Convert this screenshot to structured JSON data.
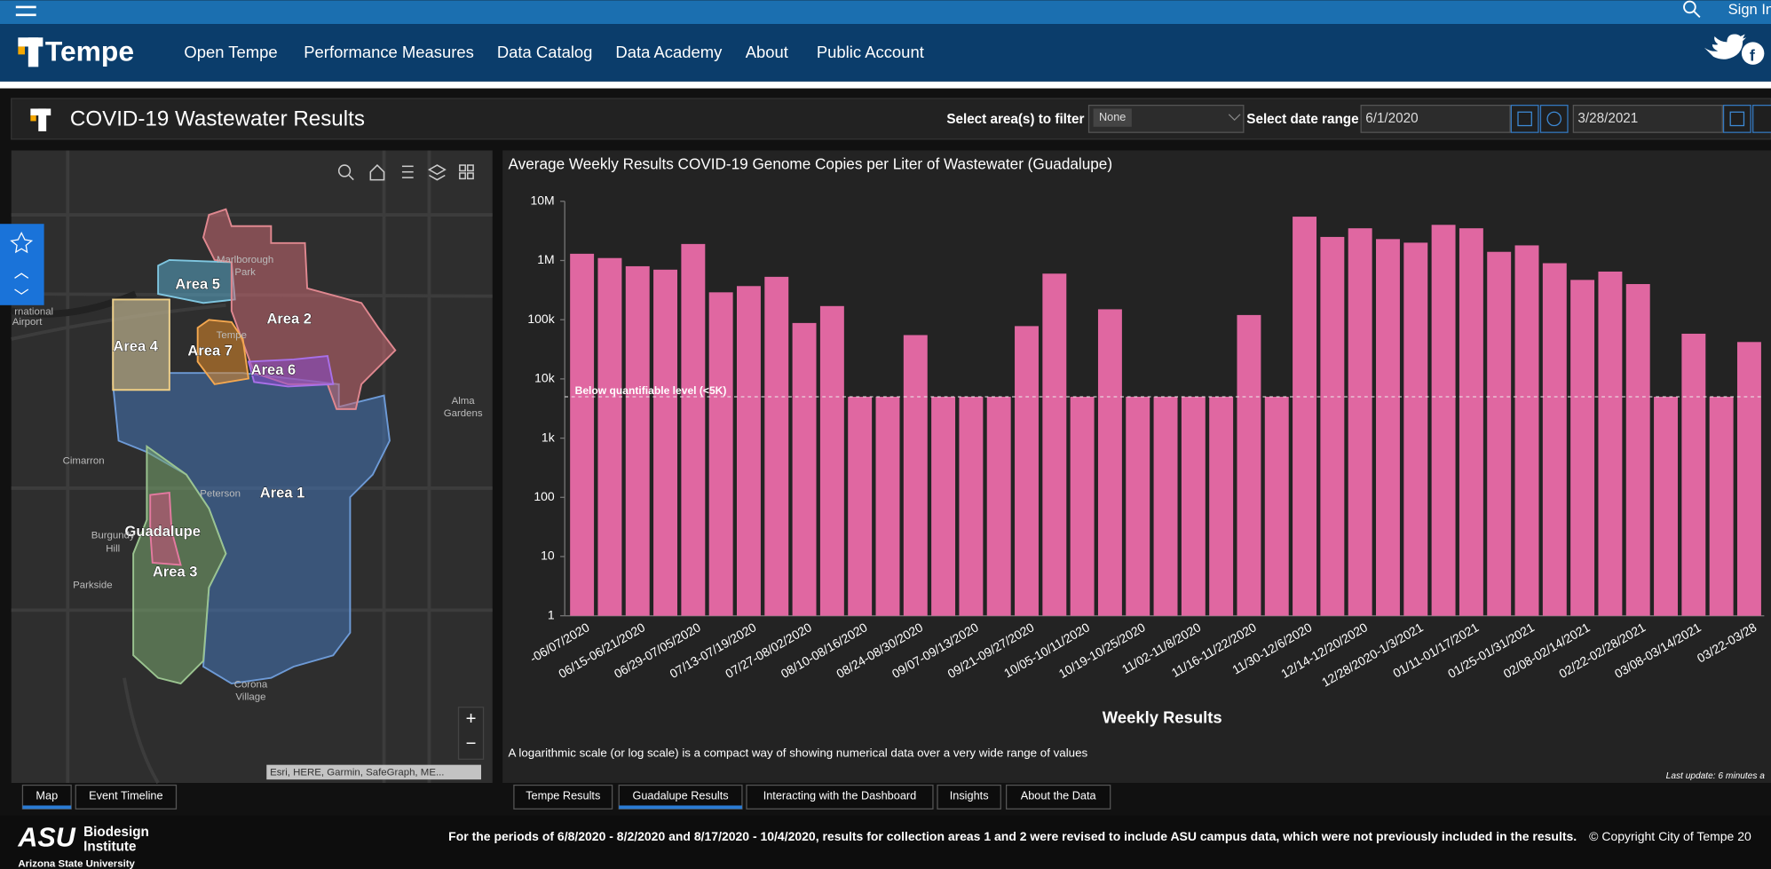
{
  "top_bar": {
    "sign_in": "Sign In"
  },
  "nav": {
    "brand": "Tempe",
    "links": [
      "Open Tempe",
      "Performance Measures",
      "Data Catalog",
      "Data Academy",
      "About",
      "Public Account"
    ]
  },
  "dashboard": {
    "title": "COVID-19 Wastewater Results",
    "filter_label": "Select area(s) to filter",
    "filter_value": "None",
    "date_label": "Select date range",
    "date_start": "6/1/2020",
    "date_end": "3/28/2021"
  },
  "map": {
    "areas": [
      "Area 5",
      "Area 2",
      "Area 4",
      "Area 7",
      "Area 6",
      "Area 1",
      "Guadalupe",
      "Area 3"
    ],
    "places": [
      "Marlborough",
      "Park",
      "Tempe",
      "Alma",
      "Gardens",
      "Cimarron",
      "Peterson",
      "Burgundy",
      "Hill",
      "Parkside",
      "Corona",
      "Village",
      "rnational",
      "Airport"
    ],
    "attribution": "Esri, HERE, Garmin, SafeGraph, ME..."
  },
  "map_tabs": [
    "Map",
    "Event Timeline"
  ],
  "chart_tabs": [
    "Tempe Results",
    "Guadalupe Results",
    "Interacting with the Dashboard",
    "Insights",
    "About the Data"
  ],
  "chart_data": {
    "type": "bar",
    "title": "Average Weekly Results COVID-19 Genome Copies per Liter of Wastewater (Guadalupe)",
    "x_label": "Weekly Results",
    "note": "A logarithmic scale (or log scale) is a compact way of showing numerical data over a very wide range of values",
    "last_update": "Last update: 6 minutes a",
    "log_scale": true,
    "color": "#e067a1",
    "categories": [
      "-06/07/2020",
      null,
      "06/15-06/21/2020",
      null,
      "06/29-07/05/2020",
      null,
      "07/13-07/19/2020",
      null,
      "07/27-08/02/2020",
      null,
      "08/10-08/16/2020",
      null,
      "08/24-08/30/2020",
      null,
      "09/07-09/13/2020",
      null,
      "09/21-09/27/2020",
      null,
      "10/05-10/11/2020",
      null,
      "10/19-10/25/2020",
      null,
      "11/02-11/8/2020",
      null,
      "11/16-11/22/2020",
      null,
      "11/30-12/6/2020",
      null,
      "12/14-12/20/2020",
      null,
      "12/28/2020-1/3/2021",
      null,
      "01/11-01/17/2021",
      null,
      "01/25-01/31/2021",
      null,
      "02/08-02/14/2021",
      null,
      "02/22-02/28/2021",
      null,
      "03/08-03/14/2021",
      null,
      "03/22-03/28"
    ],
    "values": [
      1300000,
      1100000,
      800000,
      700000,
      1900000,
      290000,
      370000,
      530000,
      88000,
      170000,
      5000,
      5000,
      55000,
      5000,
      5000,
      5000,
      78000,
      600000,
      5000,
      150000,
      5000,
      5000,
      5000,
      5000,
      120000,
      5000,
      5500000,
      2500000,
      3500000,
      2300000,
      2000000,
      4000000,
      3500000,
      1400000,
      1800000,
      900000,
      470000,
      650000,
      400000,
      5000,
      58000,
      5000,
      42000
    ],
    "threshold": {
      "value": 5000,
      "label": "Below quantifiable level (<5K)"
    },
    "ylim": [
      1,
      10000000
    ],
    "yticks": [
      1,
      10,
      100,
      {
        "value": 1000,
        "label": "1k"
      },
      {
        "value": 10000,
        "label": "10k"
      },
      {
        "value": 100000,
        "label": "100k"
      },
      {
        "value": 1000000,
        "label": "1M"
      },
      {
        "value": 10000000,
        "label": "10M"
      }
    ]
  },
  "footer": {
    "logo": "ASU",
    "institute_1": "Biodesign",
    "institute_2": "Institute",
    "university": "Arizona State University",
    "note": "For the periods of 6/8/2020 - 8/2/2020 and 8/17/2020 - 10/4/2020, results for collection areas 1 and 2 were revised to include ASU campus data, which were not previously included in the results.",
    "copyright": "© Copyright City of Tempe 20"
  }
}
